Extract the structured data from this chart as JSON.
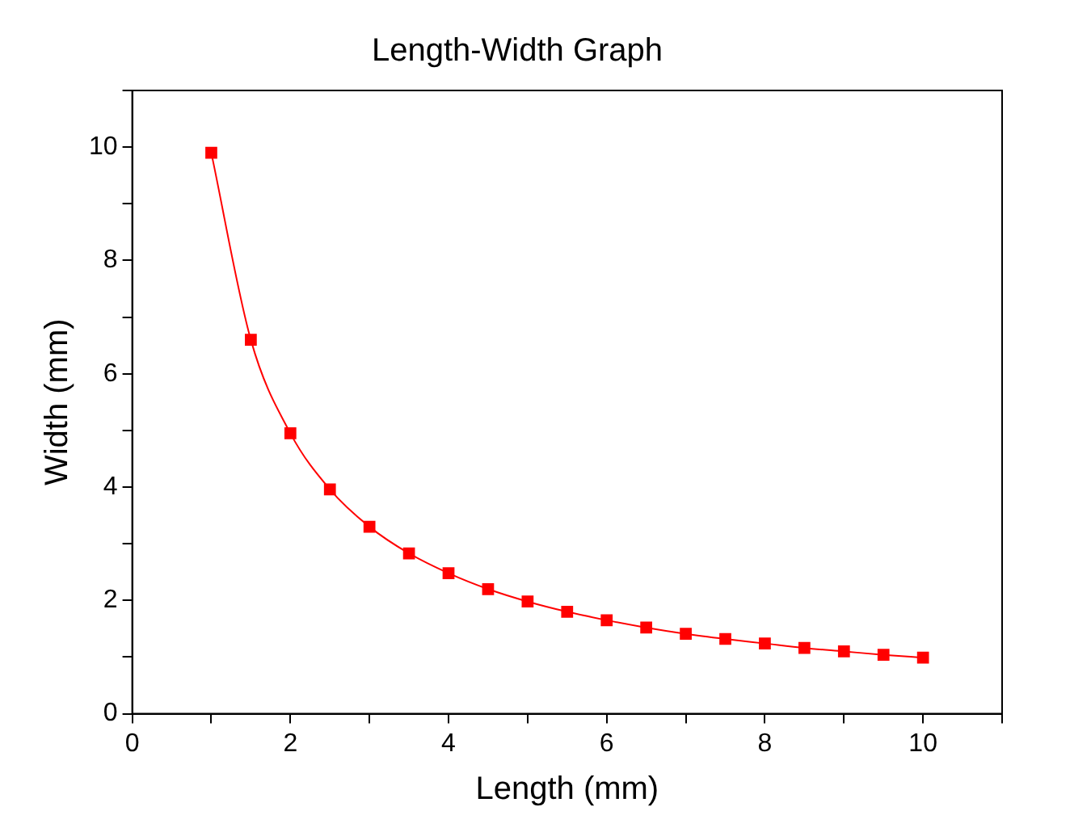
{
  "chart_data": {
    "type": "line",
    "title": "Length-Width Graph",
    "xlabel": "Length (mm)",
    "ylabel": "Width (mm)",
    "x": [
      1,
      1.5,
      2,
      2.5,
      3,
      3.5,
      4,
      4.5,
      5,
      5.5,
      6,
      6.5,
      7,
      7.5,
      8,
      8.5,
      9,
      9.5,
      10
    ],
    "series": [
      {
        "color": "#ff0000",
        "values": [
          9.9,
          6.6,
          4.95,
          3.96,
          3.3,
          2.83,
          2.48,
          2.2,
          1.98,
          1.8,
          1.65,
          1.52,
          1.41,
          1.32,
          1.24,
          1.16,
          1.1,
          1.04,
          0.99
        ]
      }
    ],
    "xlim": [
      0,
      11
    ],
    "ylim": [
      0,
      11
    ],
    "xticks": [
      0,
      {
        "value": 1,
        "label": null
      },
      2,
      {
        "value": 3,
        "label": null
      },
      4,
      {
        "value": 5,
        "label": null
      },
      6,
      {
        "value": 7,
        "label": null
      },
      8,
      {
        "value": 9,
        "label": null
      },
      10,
      {
        "value": 11,
        "label": null
      }
    ],
    "yticks": [
      0,
      {
        "value": 1,
        "label": null
      },
      2,
      {
        "value": 3,
        "label": null
      },
      4,
      {
        "value": 5,
        "label": null
      },
      6,
      {
        "value": 7,
        "label": null
      },
      8,
      {
        "value": 9,
        "label": null
      },
      10,
      {
        "value": 11,
        "label": null
      }
    ],
    "grid": false,
    "legend": false,
    "marker": "square",
    "line_style": "solid"
  }
}
